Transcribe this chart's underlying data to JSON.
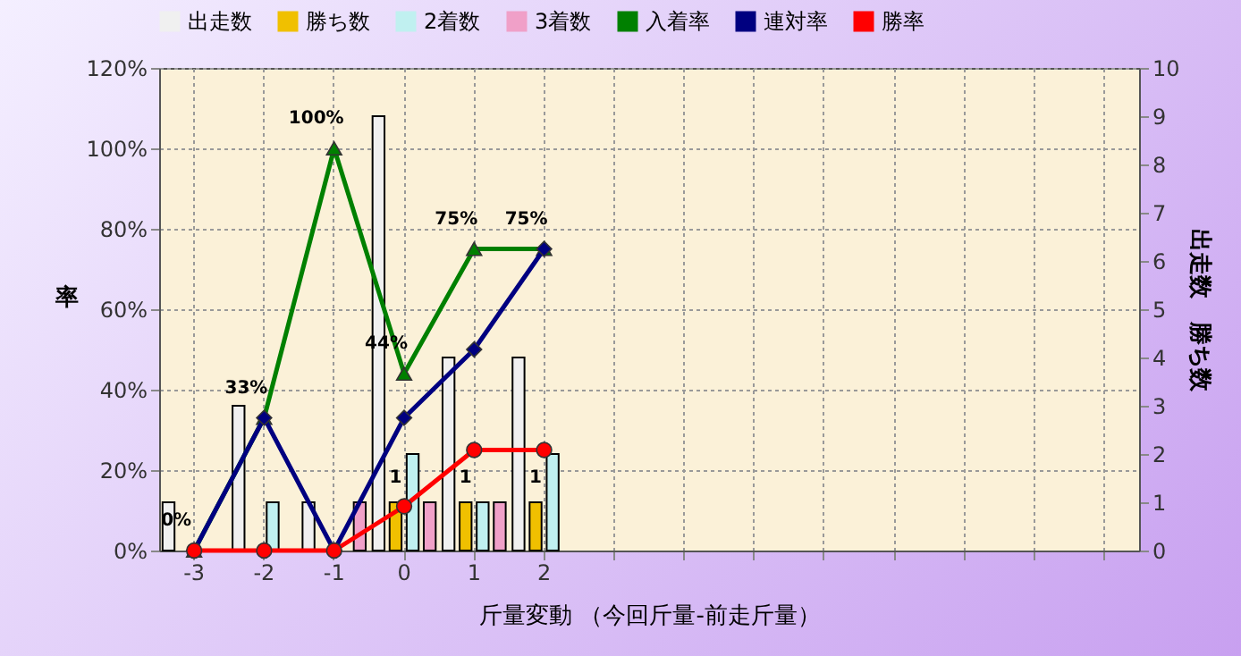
{
  "chart_data": {
    "type": "bar",
    "xlabel": "斤量変動 （今回斤量-前走斤量）",
    "ylabel": "率",
    "y2label": "出走数　勝ち数",
    "categories": [
      "-3",
      "-2",
      "-1",
      "0",
      "1",
      "2",
      null,
      null,
      null,
      null,
      null,
      null,
      null,
      null
    ],
    "series": [
      {
        "name": "出走数",
        "axis": "y2",
        "color": "#f0f0f0",
        "values": [
          1,
          3,
          1,
          9,
          4,
          4,
          null,
          null,
          null,
          null,
          null,
          null,
          null,
          null
        ]
      },
      {
        "name": "勝ち数",
        "axis": "y2",
        "color": "#f0c000",
        "values": [
          0,
          0,
          0,
          1,
          1,
          1,
          null,
          null,
          null,
          null,
          null,
          null,
          null,
          null
        ],
        "value_labels": [
          null,
          null,
          null,
          "1",
          "1",
          "1",
          null,
          null,
          null,
          null,
          null,
          null,
          null,
          null
        ]
      },
      {
        "name": "2着数",
        "axis": "y2",
        "color": "#c0f0f0",
        "values": [
          0,
          1,
          0,
          2,
          1,
          2,
          null,
          null,
          null,
          null,
          null,
          null,
          null,
          null
        ]
      },
      {
        "name": "3着数",
        "axis": "y2",
        "color": "#f0a0c8",
        "values": [
          0,
          0,
          1,
          1,
          1,
          0,
          null,
          null,
          null,
          null,
          null,
          null,
          null,
          null
        ]
      },
      {
        "name": "入着率",
        "type": "line",
        "marker": "triangle",
        "color": "#008000",
        "values": [
          0,
          33,
          100,
          44,
          75,
          75,
          null,
          null,
          null,
          null,
          null,
          null,
          null,
          null
        ],
        "value_labels": [
          "0%",
          "33%",
          "100%",
          "44%",
          "75%",
          "75%",
          null,
          null,
          null,
          null,
          null,
          null,
          null,
          null
        ]
      },
      {
        "name": "連対率",
        "type": "line",
        "marker": "diamond",
        "color": "#000080",
        "values": [
          0,
          33,
          0,
          33,
          50,
          75,
          null,
          null,
          null,
          null,
          null,
          null,
          null,
          null
        ]
      },
      {
        "name": "勝率",
        "type": "line",
        "marker": "circle",
        "color": "#ff0000",
        "values": [
          0,
          0,
          0,
          11,
          25,
          25,
          null,
          null,
          null,
          null,
          null,
          null,
          null,
          null
        ]
      }
    ],
    "ylim": [
      0,
      120
    ],
    "yticks": [
      {
        "value": 0,
        "label": "0%"
      },
      {
        "value": 20,
        "label": "20%"
      },
      {
        "value": 40,
        "label": "40%"
      },
      {
        "value": 60,
        "label": "60%"
      },
      {
        "value": 80,
        "label": "80%"
      },
      {
        "value": 100,
        "label": "100%"
      },
      {
        "value": 120,
        "label": "120%"
      }
    ],
    "y2lim": [
      0,
      10
    ],
    "y2ticks": [
      0,
      1,
      2,
      3,
      4,
      5,
      6,
      7,
      8,
      9,
      10
    ],
    "grid": true,
    "legend": "top"
  }
}
